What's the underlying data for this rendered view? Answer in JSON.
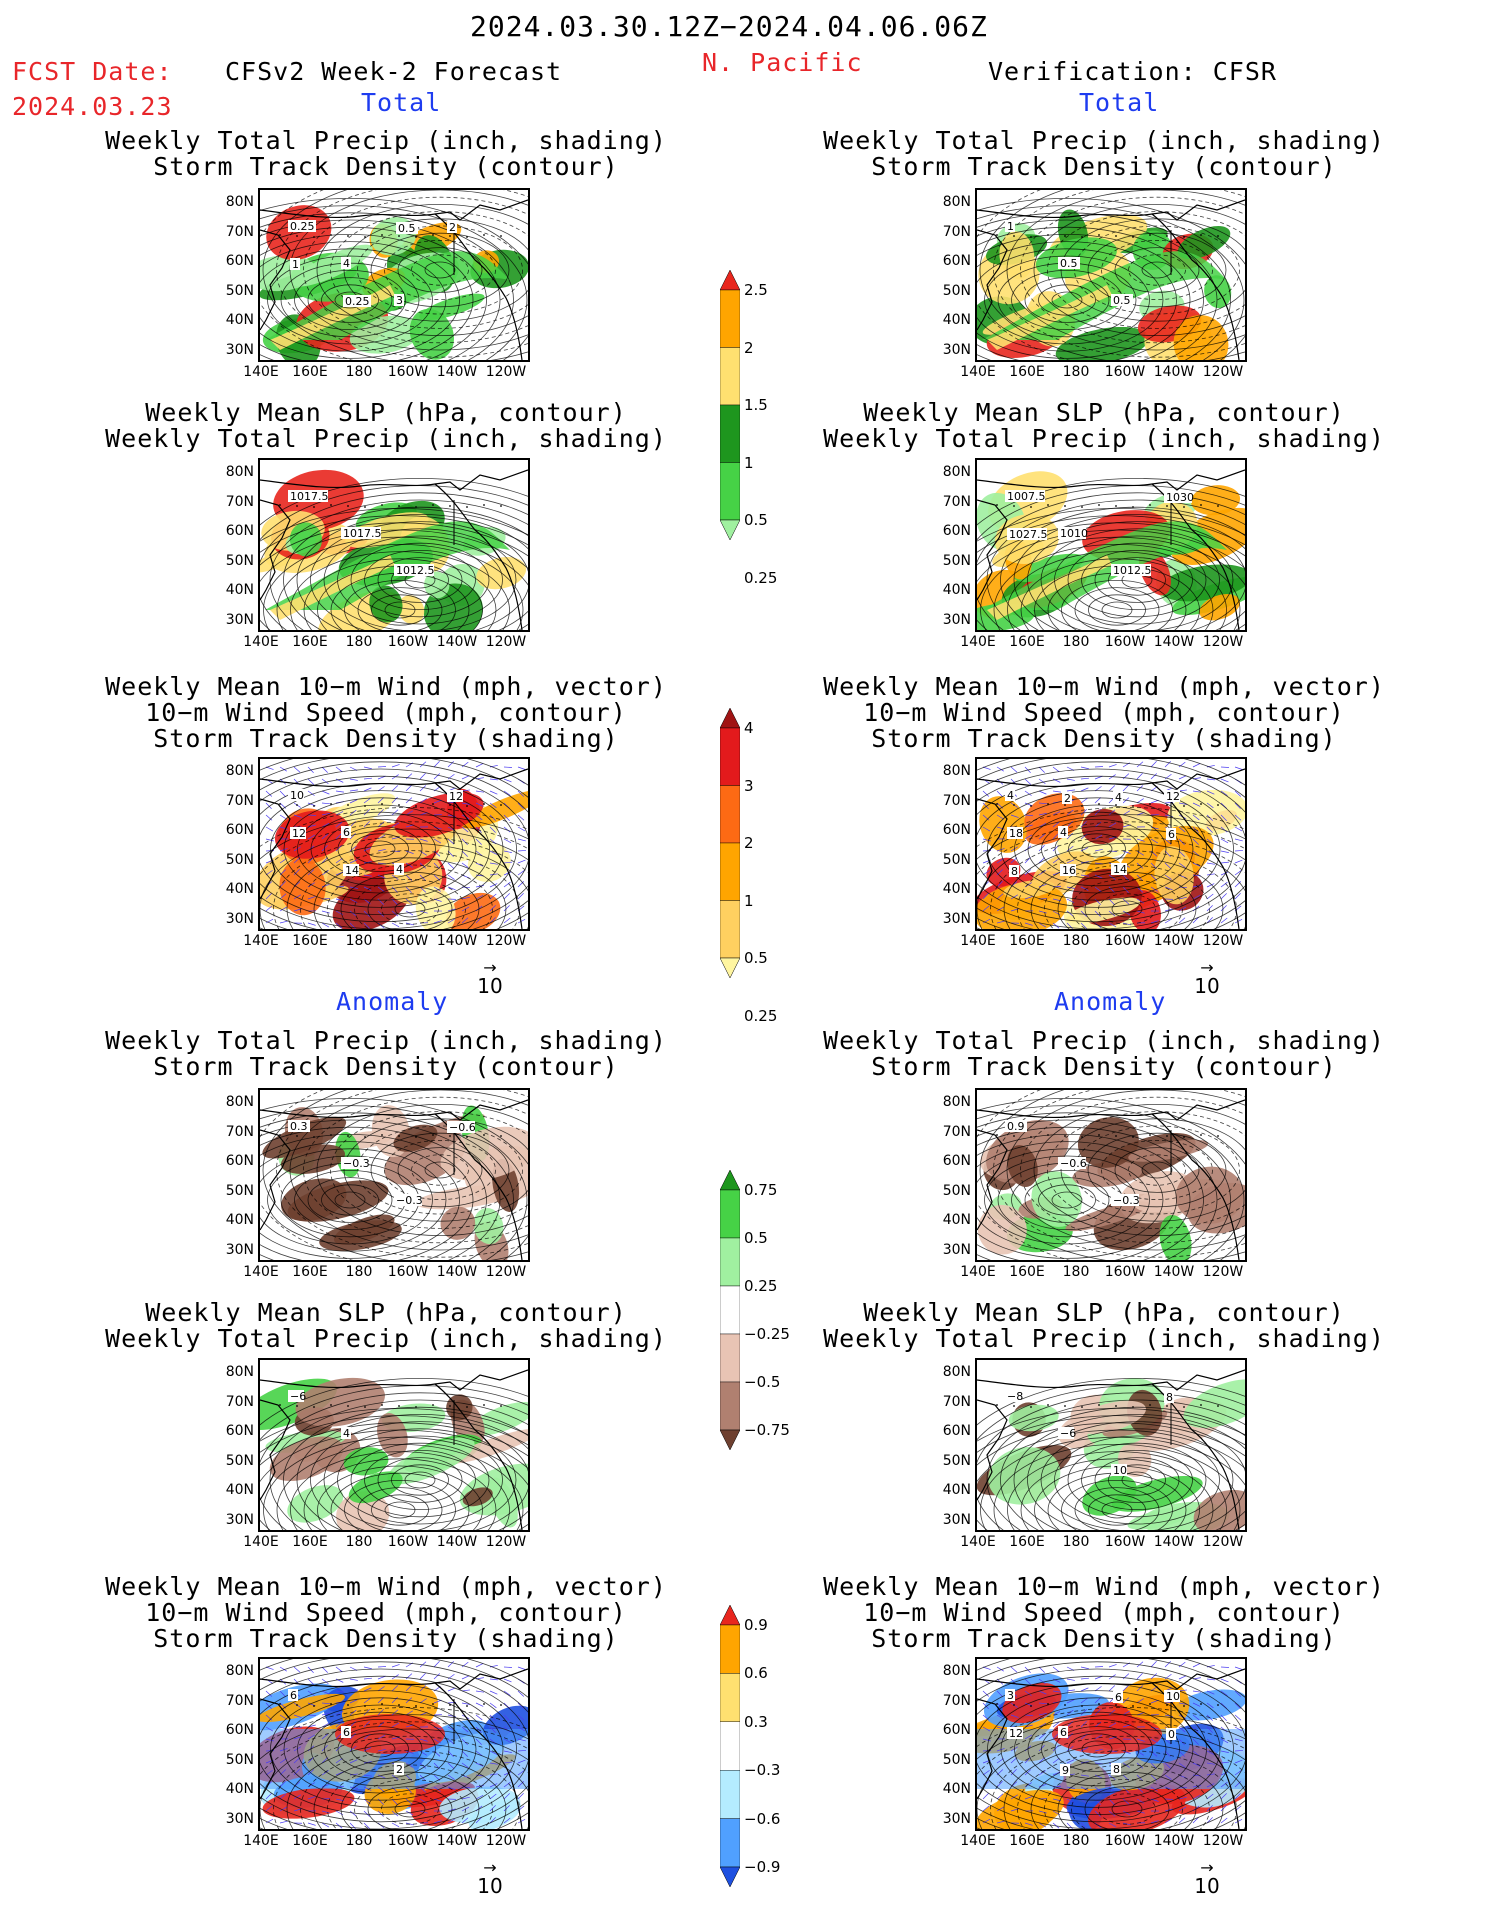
{
  "header": {
    "valid_range": "2024.03.30.12Z−2024.04.06.06Z",
    "fcst_label": "FCST Date:",
    "fcst_date": "2024.03.23",
    "forecast_title": "CFSv2 Week-2 Forecast",
    "region": "N. Pacific",
    "verification_title": "Verification: CFSR"
  },
  "sections": {
    "total": "Total",
    "anomaly": "Anomaly"
  },
  "panel_titles": {
    "precip_storm": [
      "Weekly Total Precip (inch, shading)",
      "Storm Track Density (contour)"
    ],
    "slp_precip": [
      "Weekly Mean SLP (hPa, contour)",
      "Weekly Total Precip (inch, shading)"
    ],
    "wind_storm": [
      "Weekly Mean 10−m Wind (mph, vector)",
      "10−m Wind Speed (mph, contour)",
      "Storm Track Density (shading)"
    ]
  },
  "axes": {
    "lat_labels": [
      "80N",
      "70N",
      "60N",
      "50N",
      "40N",
      "30N"
    ],
    "lon_labels": [
      "140E",
      "160E",
      "180",
      "160W",
      "140W",
      "120W"
    ]
  },
  "vector_ref": "10",
  "colorbars": {
    "precip_total": {
      "labels": [
        "2.5",
        "2",
        "1.5",
        "1",
        "0.5",
        "0.25"
      ],
      "colors": [
        "#e8261e",
        "#ffa500",
        "#ffe070",
        "#1e961e",
        "#46d246",
        "#a0f0a0"
      ]
    },
    "storm_total": {
      "labels": [
        "4",
        "3",
        "2",
        "1",
        "0.5",
        "0.25"
      ],
      "colors": [
        "#a01414",
        "#e31a1c",
        "#fd6a14",
        "#ffa500",
        "#ffd060",
        "#fff5a0"
      ]
    },
    "precip_anom": {
      "labels": [
        "0.75",
        "0.5",
        "0.25",
        "−0.25",
        "−0.5",
        "−0.75"
      ],
      "colors": [
        "#1e961e",
        "#46d246",
        "#a0f0a0",
        "#ffffff",
        "#e8c4b4",
        "#b08070",
        "#6e4030"
      ]
    },
    "storm_anom": {
      "labels": [
        "0.9",
        "0.6",
        "0.3",
        "−0.3",
        "−0.6",
        "−0.9"
      ],
      "colors": [
        "#e8261e",
        "#ffa500",
        "#ffe070",
        "#ffffff",
        "#b4ecff",
        "#50a0ff",
        "#1e50e0"
      ]
    }
  },
  "contour_labels": {
    "f_precip_total": [
      "0.25",
      "4",
      "3",
      "2",
      "1",
      "0.25",
      "0.5"
    ],
    "v_precip_total": [
      "1",
      "0.5",
      "0.5"
    ],
    "f_slp_total": [
      "1017.5",
      "1017.5",
      "1012.5"
    ],
    "v_slp_total": [
      "1007.5",
      "1010",
      "1012.5",
      "1030",
      "1027.5"
    ],
    "f_wind_total": [
      "10",
      "6",
      "4",
      "12",
      "12",
      "14"
    ],
    "v_wind_total": [
      "4",
      "4",
      "14",
      "12",
      "18",
      "16",
      "4",
      "6",
      "8",
      "2"
    ],
    "f_precip_anom": [
      "0.3",
      "−0.3",
      "−0.3",
      "−0.6"
    ],
    "v_precip_anom": [
      "0.9",
      "−0.6",
      "−0.3"
    ],
    "f_slp_anom": [
      "−6",
      "4"
    ],
    "v_slp_anom": [
      "−8",
      "−6",
      "10",
      "8"
    ],
    "f_wind_anom": [
      "6",
      "6",
      "2"
    ],
    "v_wind_anom": [
      "3",
      "6",
      "8",
      "10",
      "12",
      "9",
      "6",
      "0"
    ]
  }
}
